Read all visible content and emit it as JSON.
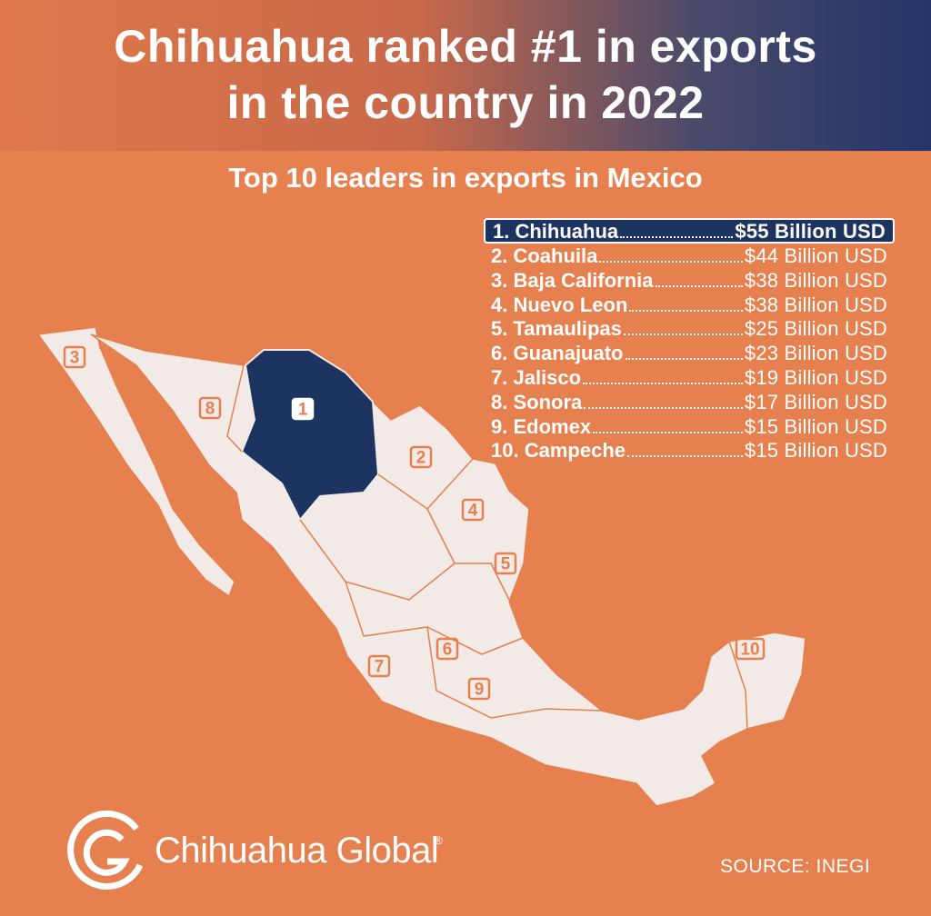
{
  "header": {
    "title_lines": [
      "Chihuahua ranked #1 in exports",
      "in the country in 2022"
    ],
    "subtitle": "Top 10 leaders in exports in Mexico"
  },
  "ranking": [
    {
      "rank": "1.",
      "state": "Chihuahua",
      "value": "$55 Billion USD"
    },
    {
      "rank": "2.",
      "state": "Coahuila",
      "value": "$44 Billion USD"
    },
    {
      "rank": "3.",
      "state": "Baja California",
      "value": "$38 Billion USD"
    },
    {
      "rank": "4.",
      "state": "Nuevo Leon",
      "value": "$38 Billion USD"
    },
    {
      "rank": "5.",
      "state": "Tamaulipas",
      "value": "$25 Billion USD"
    },
    {
      "rank": "6.",
      "state": "Guanajuato",
      "value": "$23 Billion USD"
    },
    {
      "rank": "7.",
      "state": "Jalisco",
      "value": "$19 Billion USD"
    },
    {
      "rank": "8.",
      "state": "Sonora",
      "value": "$17 Billion USD"
    },
    {
      "rank": "9.",
      "state": "Edomex",
      "value": "$15 Billion USD"
    },
    {
      "rank": "10.",
      "state": "Campeche",
      "value": "$15 Billion USD"
    }
  ],
  "map": {
    "markers": [
      "1",
      "2",
      "3",
      "4",
      "5",
      "6",
      "7",
      "8",
      "9",
      "10"
    ]
  },
  "footer": {
    "brand": "Chihuahua Global",
    "registered": "®",
    "source": "SOURCE: INEGI"
  }
}
